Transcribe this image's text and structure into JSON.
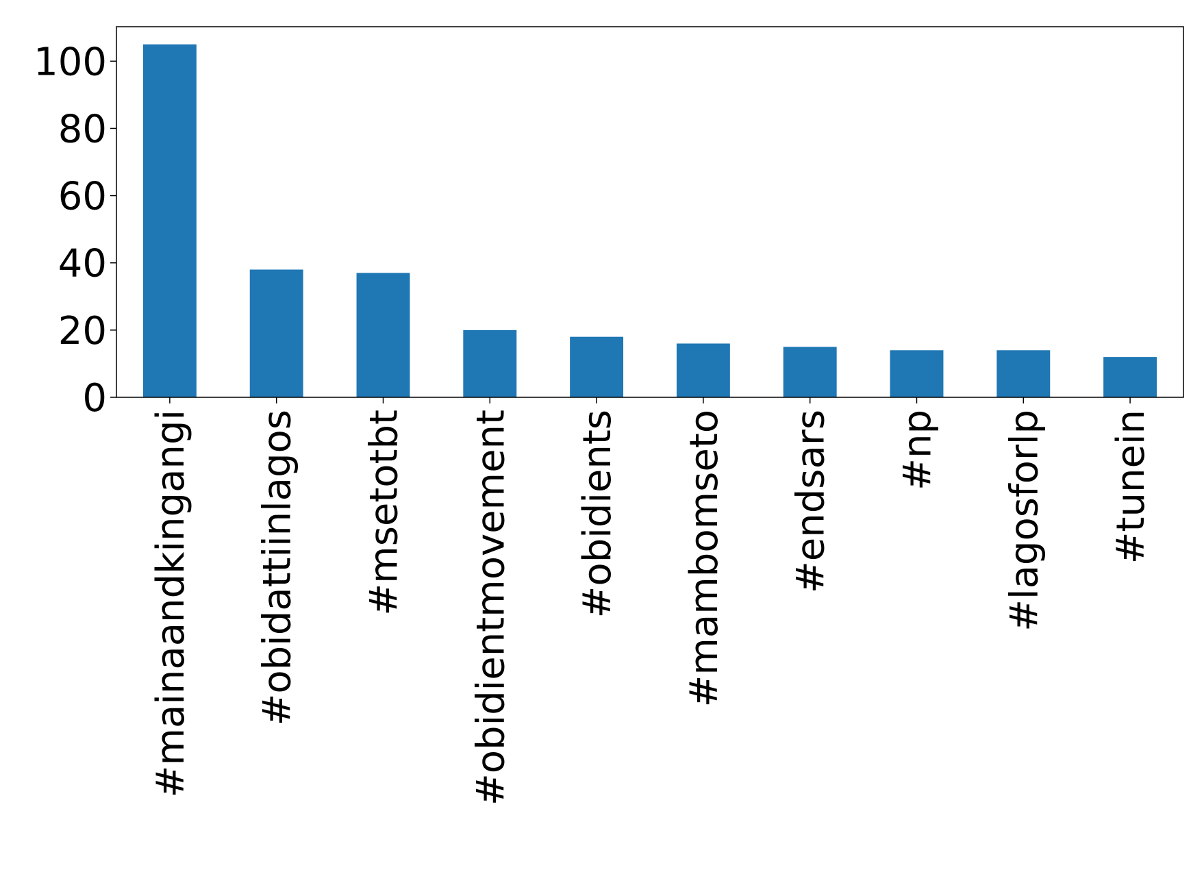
{
  "chart_data": {
    "type": "bar",
    "categories": [
      "#mainaandkingangi",
      "#obidattiinlagos",
      "#msetotbt",
      "#obidientmovement",
      "#obidients",
      "#mambomseto",
      "#endsars",
      "#np",
      "#lagosforlp",
      "#tunein"
    ],
    "values": [
      105,
      38,
      37,
      20,
      18,
      16,
      15,
      14,
      14,
      12
    ],
    "color": "#1f77b4",
    "ylim": [
      0,
      110.25
    ],
    "yticks": [
      0,
      20,
      40,
      60,
      80,
      100
    ],
    "grid": false
  }
}
